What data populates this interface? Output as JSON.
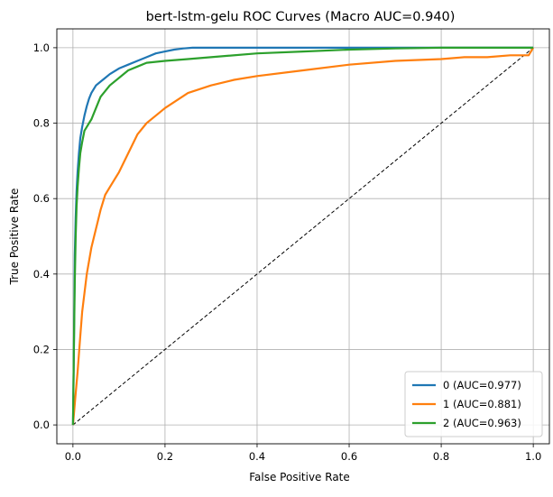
{
  "chart_data": {
    "type": "line",
    "title": "bert-lstm-gelu ROC Curves (Macro AUC=0.940)",
    "xlabel": "False Positive Rate",
    "ylabel": "True Positive Rate",
    "xlim": [
      -0.035,
      1.035
    ],
    "ylim": [
      -0.05,
      1.05
    ],
    "xticks": [
      0.0,
      0.2,
      0.4,
      0.6,
      0.8,
      1.0
    ],
    "yticks": [
      0.0,
      0.2,
      0.4,
      0.6,
      0.8,
      1.0
    ],
    "xtick_labels": [
      "0.0",
      "0.2",
      "0.4",
      "0.6",
      "0.8",
      "1.0"
    ],
    "ytick_labels": [
      "0.0",
      "0.2",
      "0.4",
      "0.6",
      "0.8",
      "1.0"
    ],
    "grid": true,
    "legend_position": "lower-right",
    "series": [
      {
        "name": "0 (AUC=0.977)",
        "color": "#1f77b4",
        "x": [
          0,
          0.002,
          0.004,
          0.006,
          0.008,
          0.01,
          0.013,
          0.016,
          0.02,
          0.025,
          0.03,
          0.035,
          0.04,
          0.05,
          0.06,
          0.07,
          0.08,
          0.1,
          0.12,
          0.14,
          0.16,
          0.18,
          0.2,
          0.22,
          0.24,
          0.26,
          0.3,
          0.4,
          0.6,
          0.8,
          1.0
        ],
        "y": [
          0,
          0.2,
          0.45,
          0.55,
          0.62,
          0.67,
          0.72,
          0.76,
          0.79,
          0.82,
          0.845,
          0.865,
          0.88,
          0.9,
          0.91,
          0.92,
          0.93,
          0.945,
          0.955,
          0.965,
          0.975,
          0.985,
          0.99,
          0.995,
          0.998,
          1.0,
          1.0,
          1.0,
          1.0,
          1.0,
          1.0
        ]
      },
      {
        "name": "1 (AUC=0.881)",
        "color": "#ff7f0e",
        "x": [
          0,
          0.005,
          0.01,
          0.015,
          0.02,
          0.03,
          0.04,
          0.05,
          0.06,
          0.07,
          0.08,
          0.1,
          0.12,
          0.14,
          0.16,
          0.18,
          0.2,
          0.25,
          0.3,
          0.35,
          0.4,
          0.5,
          0.6,
          0.7,
          0.8,
          0.85,
          0.9,
          0.95,
          0.99,
          1.0
        ],
        "y": [
          0,
          0.07,
          0.14,
          0.22,
          0.3,
          0.4,
          0.47,
          0.52,
          0.57,
          0.61,
          0.63,
          0.67,
          0.72,
          0.77,
          0.8,
          0.82,
          0.84,
          0.88,
          0.9,
          0.915,
          0.925,
          0.94,
          0.955,
          0.965,
          0.97,
          0.975,
          0.975,
          0.98,
          0.98,
          1.0
        ]
      },
      {
        "name": "2 (AUC=0.963)",
        "color": "#2ca02c",
        "x": [
          0,
          0.002,
          0.004,
          0.006,
          0.008,
          0.01,
          0.013,
          0.016,
          0.02,
          0.025,
          0.03,
          0.035,
          0.04,
          0.05,
          0.06,
          0.08,
          0.1,
          0.12,
          0.14,
          0.16,
          0.2,
          0.25,
          0.3,
          0.4,
          0.5,
          0.6,
          0.7,
          0.8,
          0.9,
          1.0
        ],
        "y": [
          0,
          0.2,
          0.38,
          0.5,
          0.58,
          0.63,
          0.68,
          0.72,
          0.75,
          0.78,
          0.79,
          0.8,
          0.81,
          0.84,
          0.87,
          0.9,
          0.92,
          0.94,
          0.95,
          0.96,
          0.965,
          0.97,
          0.975,
          0.985,
          0.99,
          0.995,
          0.998,
          1.0,
          1.0,
          1.0
        ]
      }
    ],
    "reference_line": {
      "x": [
        0,
        1
      ],
      "y": [
        0,
        1
      ],
      "color": "#000000",
      "style": "dashed"
    }
  }
}
